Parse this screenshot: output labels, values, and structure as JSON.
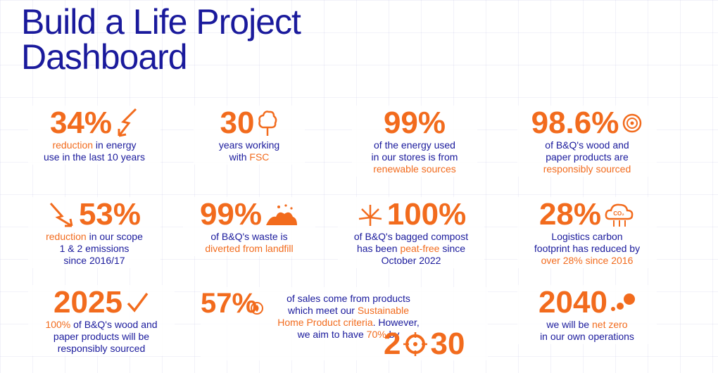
{
  "title": {
    "line1": "Build a Life Project",
    "line2": "Dashboard"
  },
  "stats": {
    "s1": {
      "value": "34%",
      "icon": "lightning-bolt-icon",
      "d1o": "reduction",
      "d1": " in energy",
      "d2": "use in the last 10 years"
    },
    "s2": {
      "value": "30",
      "icon": "tree-icon",
      "d1": "years working",
      "d2a": "with ",
      "d2o": "FSC"
    },
    "s3": {
      "value": "99%",
      "icon": "",
      "d1": "of the energy used",
      "d2": "in our stores is from",
      "d3o": "renewable sources"
    },
    "s4": {
      "value": "98.6%",
      "icon": "wood-log-icon",
      "d1": "of B&Q's wood and",
      "d2": "paper products are",
      "d3o": "responsibly sourced"
    },
    "s5": {
      "value": "53%",
      "icon": "lightning-bolt-icon",
      "d1o": "reduction",
      "d1": " in our scope",
      "d2": "1 & 2 emissions",
      "d3": "since 2016/17"
    },
    "s6": {
      "value": "99%",
      "icon": "waste-pile-icon",
      "d1": "of B&Q's waste is",
      "d2o": "diverted from landfill"
    },
    "s7": {
      "value": "100%",
      "icon": "firework-icon",
      "d1": "of B&Q's bagged compost",
      "d2a": "has been ",
      "d2o": "peat-free",
      "d2b": " since",
      "d3": "October 2022"
    },
    "s8": {
      "value": "28%",
      "icon": "co2-cloud-icon",
      "icon_text": "CO₂",
      "d1": "Logistics carbon",
      "d2": "footprint has reduced by",
      "d3o": "over 28% since 2016"
    },
    "s9": {
      "value": "2025",
      "icon": "checkmark-icon",
      "d1o": "100%",
      "d1": " of B&Q's wood and",
      "d2": "paper products will be",
      "d3": "responsibly sourced"
    },
    "s10": {
      "value": "57%",
      "icon": "pound-leaf-icon",
      "d1": "of sales come from products",
      "d2a": "which meet our ",
      "d2o": "Sustainable",
      "d3o": "Home Product criteria",
      "d3": ". However,",
      "d4a": "we aim to have ",
      "d4o": "70%",
      "d4b": " by",
      "year_a": "2",
      "year_b": "30"
    },
    "s11": {
      "value": "2040",
      "icon": "dots-icon",
      "d1a": "we will be ",
      "d1o": "net zero",
      "d2": "in our own operations"
    }
  },
  "colors": {
    "accent": "#f26b1d",
    "brand": "#1a1a9c"
  }
}
